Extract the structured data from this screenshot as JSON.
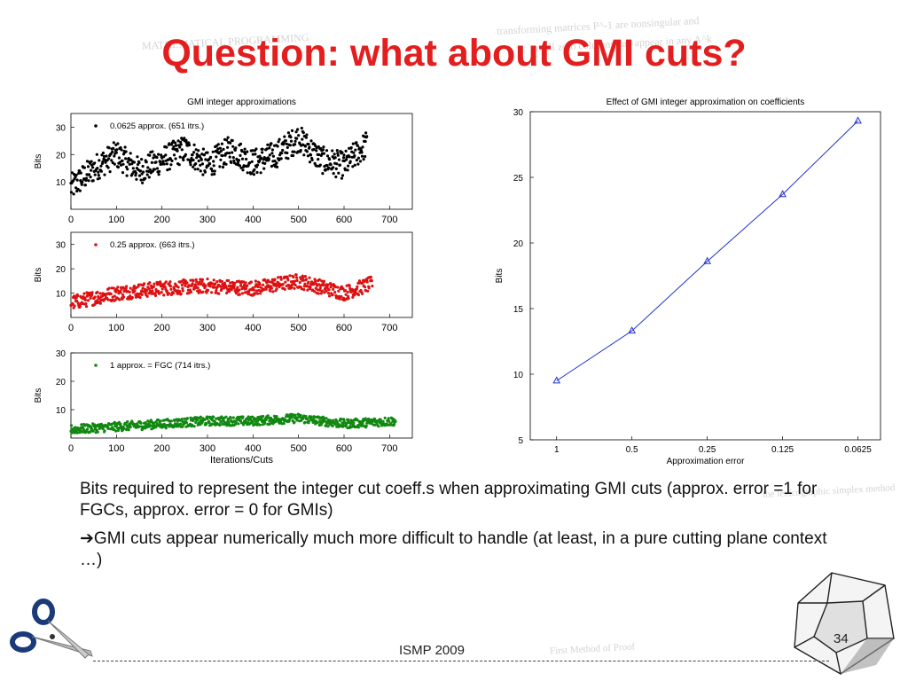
{
  "slide": {
    "title": "Question: what about GMI cuts?",
    "body": [
      "Bits required to represent  the integer cut coeff.s when approximating GMI cuts (approx. error =1 for FGCs, approx. error = 0 for GMIs)",
      "➔GMI cuts appear numerically much more difficult to handle (at least, in a pure cutting plane context …)"
    ],
    "footer": "ISMP 2009",
    "page_number": "34"
  },
  "chart_data": [
    {
      "type": "scatter",
      "title": "GMI integer approximations",
      "ylabel": "Bits",
      "xlabel": "",
      "xlim": [
        0,
        750
      ],
      "ylim": [
        0,
        35
      ],
      "xticks": [
        "0",
        "100",
        "200",
        "300",
        "400",
        "500",
        "600",
        "700"
      ],
      "yticks": [
        "10",
        "20",
        "30"
      ],
      "legend": "0.0625 approx. (651 itrs.)",
      "legend_placement": "top-left",
      "color": "#000000",
      "n_points": 651,
      "trend": [
        [
          0,
          8
        ],
        [
          60,
          16
        ],
        [
          100,
          20
        ],
        [
          150,
          14
        ],
        [
          200,
          18
        ],
        [
          250,
          22
        ],
        [
          300,
          16
        ],
        [
          350,
          22
        ],
        [
          400,
          17
        ],
        [
          450,
          20
        ],
        [
          500,
          26
        ],
        [
          550,
          18
        ],
        [
          600,
          16
        ],
        [
          651,
          24
        ]
      ]
    },
    {
      "type": "scatter",
      "title": "",
      "ylabel": "Bits",
      "xlabel": "",
      "xlim": [
        0,
        750
      ],
      "ylim": [
        0,
        35
      ],
      "xticks": [
        "0",
        "100",
        "200",
        "300",
        "400",
        "500",
        "600",
        "700"
      ],
      "yticks": [
        "10",
        "20",
        "30"
      ],
      "legend": "0.25 approx. (663 itrs.)",
      "legend_placement": "top-left",
      "color": "#dd1111",
      "n_points": 663,
      "trend": [
        [
          0,
          6
        ],
        [
          100,
          10
        ],
        [
          200,
          12
        ],
        [
          300,
          13
        ],
        [
          400,
          12
        ],
        [
          500,
          15
        ],
        [
          600,
          10
        ],
        [
          663,
          14
        ]
      ]
    },
    {
      "type": "scatter",
      "title": "",
      "ylabel": "Bits",
      "xlabel": "Iterations/Cuts",
      "xlim": [
        0,
        750
      ],
      "ylim": [
        0,
        30
      ],
      "xticks": [
        "0",
        "100",
        "200",
        "300",
        "400",
        "500",
        "600",
        "700"
      ],
      "yticks": [
        "10",
        "20",
        "30"
      ],
      "legend": "1 approx. = FGC (714 itrs.)",
      "legend_placement": "top-left",
      "color": "#118811",
      "n_points": 714,
      "trend": [
        [
          0,
          3
        ],
        [
          100,
          4
        ],
        [
          200,
          5
        ],
        [
          300,
          6
        ],
        [
          400,
          6
        ],
        [
          500,
          7
        ],
        [
          600,
          5
        ],
        [
          714,
          6
        ]
      ]
    },
    {
      "type": "line",
      "title": "Effect of GMI integer approximation on coefficients",
      "xlabel": "Approximation error",
      "ylabel": "Bits",
      "categories": [
        "1",
        "0.5",
        "0.25",
        "0.125",
        "0.0625"
      ],
      "values": [
        9.5,
        13.3,
        18.6,
        23.7,
        29.3
      ],
      "ylim": [
        5,
        30
      ],
      "yticks": [
        "5",
        "10",
        "15",
        "20",
        "25",
        "30"
      ],
      "color": "#2233cc",
      "marker": "triangle"
    }
  ],
  "colors": {
    "title": "#e31e1e",
    "accent_blue": "#2233cc"
  },
  "icons": [
    "scissors-icon",
    "tesseract-icon"
  ],
  "background_text": [
    "transforming matrices P^-1 are nonsingular and",
    "so all zero columns can appear in any A^k",
    "MATHEMATICAL PROGRAMMING",
    "the lexicographic simplex method",
    "First Method of Proof"
  ]
}
